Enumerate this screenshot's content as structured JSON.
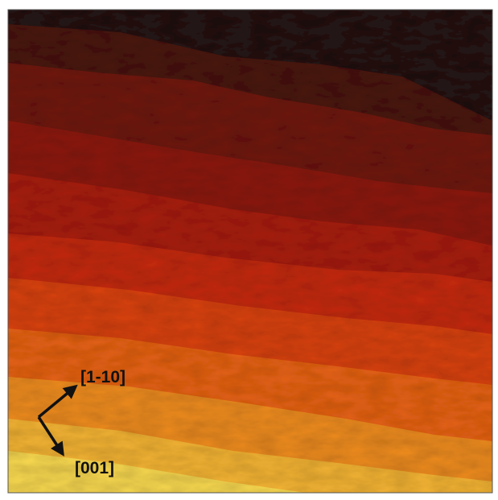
{
  "labels": {
    "direction_1": "[1-10]",
    "direction_2": "[001]"
  }
}
